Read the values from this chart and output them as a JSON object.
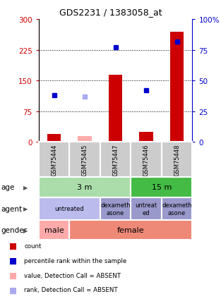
{
  "title": "GDS2231 / 1383058_at",
  "samples": [
    "GSM75444",
    "GSM75445",
    "GSM75447",
    "GSM75446",
    "GSM75448"
  ],
  "count_values": [
    20,
    15,
    165,
    25,
    270
  ],
  "count_absent": [
    false,
    true,
    false,
    false,
    false
  ],
  "percentile_values": [
    38,
    37,
    77,
    42,
    82
  ],
  "percentile_absent": [
    false,
    true,
    false,
    false,
    false
  ],
  "ylim_left": [
    0,
    300
  ],
  "ylim_right": [
    0,
    100
  ],
  "yticks_left": [
    0,
    75,
    150,
    225,
    300
  ],
  "yticks_right": [
    0,
    25,
    50,
    75,
    100
  ],
  "left_tick_labels": [
    "0",
    "75",
    "150",
    "225",
    "300"
  ],
  "right_tick_labels": [
    "0",
    "25",
    "50",
    "75",
    "100%"
  ],
  "bar_color_normal": "#cc0000",
  "bar_color_absent": "#ffaaaa",
  "dot_color_normal": "#0000cc",
  "dot_color_absent": "#aaaaee",
  "age_cells": [
    {
      "label": "3 m",
      "start": 0,
      "end": 3,
      "color": "#aaddaa"
    },
    {
      "label": "15 m",
      "start": 3,
      "end": 5,
      "color": "#44bb44"
    }
  ],
  "agent_cells": [
    {
      "label": "untreated",
      "start": 0,
      "end": 2,
      "color": "#bbbbee"
    },
    {
      "label": "dexameth\nasone",
      "start": 2,
      "end": 3,
      "color": "#9999cc"
    },
    {
      "label": "untreat\ned",
      "start": 3,
      "end": 4,
      "color": "#9999cc"
    },
    {
      "label": "dexameth\nasone",
      "start": 4,
      "end": 5,
      "color": "#9999cc"
    }
  ],
  "gender_cells": [
    {
      "label": "male",
      "start": 0,
      "end": 1,
      "color": "#ffaaaa"
    },
    {
      "label": "female",
      "start": 1,
      "end": 5,
      "color": "#ee8877"
    }
  ],
  "legend_items": [
    {
      "color": "#cc0000",
      "label": "count"
    },
    {
      "color": "#0000cc",
      "label": "percentile rank within the sample"
    },
    {
      "color": "#ffaaaa",
      "label": "value, Detection Call = ABSENT"
    },
    {
      "color": "#aaaaee",
      "label": "rank, Detection Call = ABSENT"
    }
  ],
  "bg_color": "#ffffff",
  "sample_cell_color": "#cccccc",
  "row_label_names": [
    "age",
    "agent",
    "gender"
  ]
}
